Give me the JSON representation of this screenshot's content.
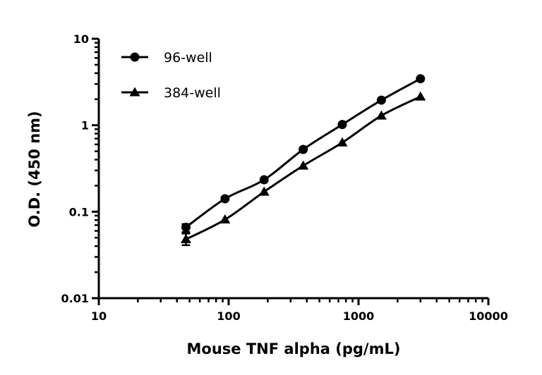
{
  "chart_data": {
    "type": "line",
    "title": "",
    "xlabel": "Mouse TNF alpha (pg/mL)",
    "ylabel": "O.D. (450 nm)",
    "xscale": "log",
    "yscale": "log",
    "xlim": [
      10,
      10000
    ],
    "ylim": [
      0.01,
      10
    ],
    "xticks": [
      "10",
      "100",
      "1000",
      "10000"
    ],
    "yticks": [
      "0.01",
      "0.1",
      "1",
      "10"
    ],
    "grid": false,
    "legend_position": "top-left",
    "x": [
      46.875,
      93.75,
      187.5,
      375,
      750,
      1500,
      3000
    ],
    "series": [
      {
        "name": "96-well",
        "marker": "circle",
        "color": "#000000",
        "values": [
          0.066,
          0.141,
          0.234,
          0.525,
          1.02,
          1.95,
          3.45
        ],
        "error_low": [
          0.058,
          null,
          null,
          null,
          null,
          null,
          null
        ],
        "error_high": [
          0.072,
          null,
          null,
          null,
          null,
          null,
          null
        ]
      },
      {
        "name": "384-well",
        "marker": "triangle",
        "color": "#000000",
        "values": [
          0.048,
          0.081,
          0.17,
          0.34,
          0.63,
          1.29,
          2.14
        ],
        "error_low": [
          0.041,
          null,
          null,
          null,
          null,
          null,
          null
        ],
        "error_high": [
          0.056,
          null,
          null,
          null,
          null,
          null,
          null
        ]
      }
    ]
  }
}
